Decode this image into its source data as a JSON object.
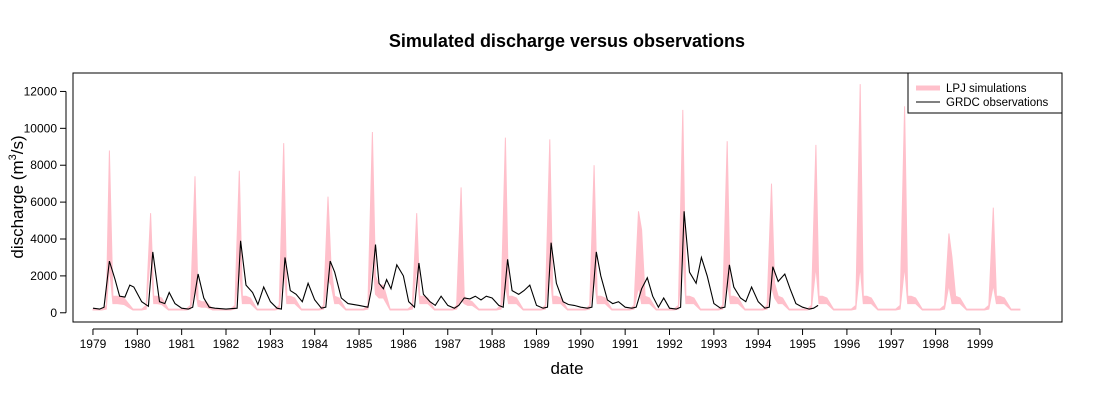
{
  "chart_data": {
    "type": "line",
    "title": "Simulated discharge versus observations",
    "xlabel": "date",
    "ylabel": "discharge (m",
    "ylabel_superscript": "3",
    "ylabel_suffix": "/s)",
    "xlim": [
      1978.55,
      2000.85
    ],
    "ylim": [
      -500,
      13000
    ],
    "x_ticks": [
      1979,
      1980,
      1981,
      1982,
      1983,
      1984,
      1985,
      1986,
      1987,
      1988,
      1989,
      1990,
      1991,
      1992,
      1993,
      1994,
      1995,
      1996,
      1997,
      1998,
      1999
    ],
    "y_ticks": [
      0,
      2000,
      4000,
      6000,
      8000,
      10000,
      12000
    ],
    "legend": {
      "position": "top-right",
      "entries": [
        "LPJ simulations",
        "GRDC observations"
      ]
    },
    "series": [
      {
        "name": "LPJ simulations",
        "kind": "band",
        "color": "#FFC0CB",
        "x": [
          1979.0,
          1979.1,
          1979.2,
          1979.3,
          1979.37,
          1979.45,
          1979.55,
          1979.7,
          1979.9,
          1980.0,
          1980.1,
          1980.2,
          1980.3,
          1980.37,
          1980.45,
          1980.55,
          1980.7,
          1980.9,
          1981.0,
          1981.1,
          1981.2,
          1981.3,
          1981.37,
          1981.45,
          1981.55,
          1981.7,
          1981.9,
          1982.0,
          1982.1,
          1982.2,
          1982.3,
          1982.37,
          1982.45,
          1982.55,
          1982.7,
          1982.9,
          1983.0,
          1983.1,
          1983.2,
          1983.3,
          1983.37,
          1983.45,
          1983.55,
          1983.7,
          1983.9,
          1984.0,
          1984.1,
          1984.2,
          1984.3,
          1984.37,
          1984.45,
          1984.55,
          1984.7,
          1984.9,
          1985.0,
          1985.1,
          1985.2,
          1985.3,
          1985.37,
          1985.45,
          1985.55,
          1985.7,
          1985.9,
          1986.0,
          1986.1,
          1986.2,
          1986.3,
          1986.37,
          1986.45,
          1986.55,
          1986.7,
          1986.9,
          1987.0,
          1987.1,
          1987.2,
          1987.3,
          1987.37,
          1987.45,
          1987.55,
          1987.7,
          1987.9,
          1988.0,
          1988.1,
          1988.2,
          1988.3,
          1988.37,
          1988.45,
          1988.55,
          1988.7,
          1988.9,
          1989.0,
          1989.1,
          1989.2,
          1989.3,
          1989.37,
          1989.45,
          1989.55,
          1989.7,
          1989.9,
          1990.0,
          1990.1,
          1990.2,
          1990.3,
          1990.37,
          1990.45,
          1990.55,
          1990.7,
          1990.9,
          1991.0,
          1991.1,
          1991.2,
          1991.3,
          1991.37,
          1991.45,
          1991.55,
          1991.7,
          1991.9,
          1992.0,
          1992.1,
          1992.2,
          1992.3,
          1992.37,
          1992.45,
          1992.55,
          1992.7,
          1992.9,
          1993.0,
          1993.1,
          1993.2,
          1993.3,
          1993.37,
          1993.45,
          1993.55,
          1993.7,
          1993.9,
          1994.0,
          1994.1,
          1994.2,
          1994.3,
          1994.37,
          1994.45,
          1994.55,
          1994.7,
          1994.9,
          1995.0,
          1995.1,
          1995.2,
          1995.3,
          1995.37,
          1995.45,
          1995.55,
          1995.7,
          1995.9,
          1996.0,
          1996.1,
          1996.2,
          1996.3,
          1996.37,
          1996.45,
          1996.55,
          1996.7,
          1996.9,
          1997.0,
          1997.1,
          1997.2,
          1997.3,
          1997.37,
          1997.45,
          1997.55,
          1997.7,
          1997.9,
          1998.0,
          1998.1,
          1998.2,
          1998.3,
          1998.37,
          1998.45,
          1998.55,
          1998.7,
          1998.9,
          1999.0,
          1999.1,
          1999.2,
          1999.3,
          1999.37,
          1999.45,
          1999.55,
          1999.7,
          1999.9
        ],
        "lower": [
          150,
          150,
          150,
          200,
          2500,
          500,
          500,
          450,
          150,
          150,
          150,
          200,
          3300,
          500,
          500,
          450,
          150,
          150,
          150,
          150,
          200,
          1400,
          350,
          300,
          300,
          150,
          150,
          150,
          150,
          200,
          2500,
          500,
          500,
          500,
          150,
          150,
          150,
          150,
          200,
          2500,
          500,
          500,
          500,
          150,
          150,
          150,
          150,
          200,
          1800,
          1500,
          500,
          500,
          150,
          150,
          150,
          150,
          200,
          3000,
          1000,
          800,
          800,
          150,
          150,
          150,
          150,
          200,
          2500,
          500,
          500,
          500,
          150,
          150,
          150,
          150,
          200,
          700,
          500,
          400,
          400,
          150,
          150,
          150,
          150,
          200,
          1500,
          500,
          500,
          500,
          150,
          150,
          150,
          150,
          200,
          2300,
          500,
          500,
          500,
          150,
          150,
          150,
          150,
          200,
          2000,
          500,
          500,
          500,
          150,
          150,
          150,
          150,
          200,
          1400,
          500,
          500,
          500,
          150,
          150,
          150,
          150,
          200,
          3300,
          500,
          500,
          500,
          150,
          150,
          150,
          150,
          200,
          1800,
          500,
          500,
          500,
          150,
          150,
          150,
          150,
          200,
          1400,
          800,
          500,
          500,
          150,
          150,
          150,
          150,
          200,
          2500,
          500,
          500,
          500,
          150,
          150,
          150,
          150,
          200,
          2500,
          500,
          500,
          500,
          150,
          150,
          150,
          150,
          200,
          2500,
          500,
          500,
          500,
          150,
          150,
          150,
          150,
          200,
          1500,
          500,
          500,
          500,
          150,
          150,
          150,
          150,
          200,
          1500,
          500,
          500,
          500,
          150,
          150
        ],
        "upper": [
          200,
          200,
          200,
          400,
          8800,
          900,
          900,
          800,
          200,
          200,
          200,
          400,
          5400,
          900,
          900,
          800,
          200,
          200,
          200,
          200,
          400,
          7400,
          700,
          600,
          600,
          200,
          200,
          200,
          200,
          400,
          7700,
          900,
          900,
          800,
          200,
          200,
          200,
          200,
          400,
          9200,
          900,
          900,
          800,
          200,
          200,
          200,
          200,
          400,
          6300,
          2500,
          900,
          800,
          200,
          200,
          200,
          200,
          400,
          9800,
          2000,
          1500,
          1500,
          200,
          200,
          200,
          200,
          400,
          5400,
          900,
          900,
          800,
          200,
          200,
          200,
          200,
          400,
          6800,
          900,
          700,
          600,
          200,
          200,
          200,
          200,
          400,
          9500,
          900,
          900,
          800,
          200,
          200,
          200,
          200,
          400,
          9400,
          900,
          900,
          800,
          200,
          200,
          200,
          200,
          400,
          8000,
          900,
          900,
          800,
          200,
          200,
          200,
          200,
          400,
          5500,
          4500,
          900,
          800,
          200,
          200,
          200,
          200,
          400,
          11000,
          900,
          900,
          800,
          200,
          200,
          200,
          200,
          400,
          9300,
          900,
          900,
          800,
          200,
          200,
          200,
          200,
          400,
          7000,
          1600,
          900,
          800,
          200,
          200,
          200,
          200,
          400,
          9100,
          900,
          900,
          800,
          200,
          200,
          200,
          200,
          400,
          12400,
          900,
          900,
          800,
          200,
          200,
          200,
          200,
          400,
          11200,
          900,
          900,
          800,
          200,
          200,
          200,
          200,
          400,
          4300,
          3000,
          900,
          800,
          200,
          200,
          200,
          200,
          400,
          5700,
          900,
          900,
          800,
          200,
          200
        ]
      },
      {
        "name": "GRDC observations",
        "kind": "line",
        "color": "#000000",
        "x": [
          1979.0,
          1979.15,
          1979.25,
          1979.37,
          1979.5,
          1979.6,
          1979.72,
          1979.83,
          1979.92,
          1980.1,
          1980.25,
          1980.35,
          1980.5,
          1980.62,
          1980.72,
          1980.85,
          1981.0,
          1981.15,
          1981.25,
          1981.37,
          1981.5,
          1981.62,
          1981.75,
          1982.0,
          1982.25,
          1982.33,
          1982.45,
          1982.6,
          1982.72,
          1982.85,
          1983.0,
          1983.15,
          1983.25,
          1983.33,
          1983.45,
          1983.58,
          1983.72,
          1983.85,
          1984.0,
          1984.15,
          1984.25,
          1984.35,
          1984.45,
          1984.6,
          1984.75,
          1985.0,
          1985.2,
          1985.28,
          1985.37,
          1985.45,
          1985.55,
          1985.62,
          1985.72,
          1985.85,
          1986.0,
          1986.12,
          1986.25,
          1986.35,
          1986.45,
          1986.6,
          1986.72,
          1986.85,
          1987.0,
          1987.15,
          1987.25,
          1987.37,
          1987.5,
          1987.62,
          1987.75,
          1987.87,
          1988.0,
          1988.15,
          1988.25,
          1988.35,
          1988.45,
          1988.6,
          1988.72,
          1988.85,
          1989.0,
          1989.15,
          1989.25,
          1989.33,
          1989.45,
          1989.6,
          1989.72,
          1989.85,
          1990.0,
          1990.15,
          1990.25,
          1990.35,
          1990.45,
          1990.6,
          1990.72,
          1990.85,
          1991.0,
          1991.15,
          1991.25,
          1991.37,
          1991.5,
          1991.62,
          1991.75,
          1991.87,
          1992.0,
          1992.15,
          1992.25,
          1992.33,
          1992.45,
          1992.6,
          1992.72,
          1992.85,
          1993.0,
          1993.15,
          1993.25,
          1993.35,
          1993.45,
          1993.6,
          1993.72,
          1993.85,
          1994.0,
          1994.15,
          1994.25,
          1994.33,
          1994.45,
          1994.6,
          1994.72,
          1994.85,
          1995.0,
          1995.15,
          1995.25,
          1995.35
        ],
        "y": [
          250,
          200,
          300,
          2800,
          1800,
          900,
          850,
          1500,
          1400,
          600,
          350,
          3300,
          600,
          500,
          1100,
          500,
          250,
          200,
          300,
          2100,
          800,
          300,
          250,
          200,
          250,
          3900,
          1500,
          1100,
          450,
          1400,
          600,
          250,
          200,
          3000,
          1200,
          1000,
          600,
          1600,
          700,
          250,
          300,
          2800,
          2200,
          800,
          500,
          400,
          300,
          1300,
          3700,
          1600,
          1300,
          1800,
          1300,
          2600,
          2000,
          600,
          300,
          2700,
          1000,
          600,
          400,
          900,
          400,
          250,
          400,
          800,
          750,
          900,
          700,
          900,
          800,
          400,
          300,
          2900,
          1200,
          1000,
          1200,
          1500,
          400,
          250,
          300,
          3800,
          1600,
          600,
          450,
          400,
          300,
          250,
          300,
          3300,
          2000,
          700,
          500,
          600,
          300,
          250,
          300,
          1300,
          1900,
          900,
          300,
          800,
          250,
          200,
          300,
          5500,
          2200,
          1600,
          3000,
          2000,
          500,
          250,
          300,
          2600,
          1400,
          800,
          600,
          1400,
          600,
          250,
          300,
          2500,
          1700,
          2100,
          1300,
          500,
          300,
          200,
          250,
          400
        ]
      }
    ]
  }
}
